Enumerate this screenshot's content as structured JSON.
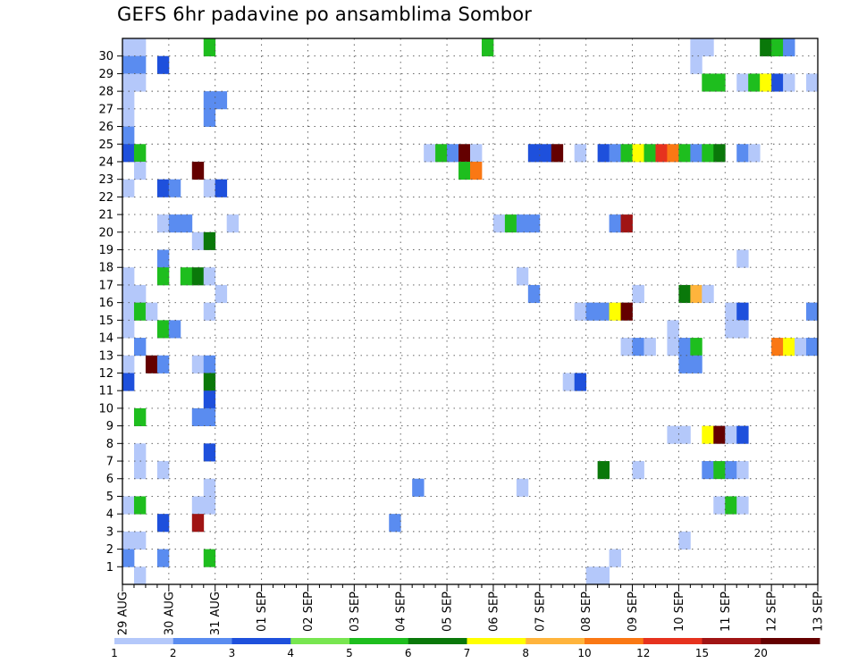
{
  "chart_data": {
    "type": "heatmap",
    "title": "GEFS 6hr padavine po ansamblima Sombor",
    "xlabel": "",
    "ylabel": "",
    "x_tick_labels": [
      "29 AUG",
      "30 AUG",
      "31 AUG",
      "01 SEP",
      "02 SEP",
      "03 SEP",
      "04 SEP",
      "05 SEP",
      "06 SEP",
      "07 SEP",
      "08 SEP",
      "09 SEP",
      "10 SEP",
      "11 SEP",
      "12 SEP",
      "13 SEP"
    ],
    "y_tick_labels": [
      "1",
      "2",
      "3",
      "4",
      "5",
      "6",
      "7",
      "8",
      "9",
      "10",
      "11",
      "12",
      "13",
      "14",
      "15",
      "16",
      "17",
      "18",
      "19",
      "20",
      "21",
      "22",
      "23",
      "24",
      "25",
      "26",
      "27",
      "28",
      "29",
      "30"
    ],
    "xlim_steps": [
      0,
      60
    ],
    "ylim_members": [
      0,
      30
    ],
    "grid": true,
    "legend_placement": "bottom",
    "colorbar": {
      "labels": [
        "1",
        "2",
        "3",
        "4",
        "5",
        "6",
        "7",
        "8",
        "10",
        "12",
        "15",
        "20"
      ],
      "colors": [
        "#b4c8fa",
        "#5a8cf0",
        "#1e50dc",
        "#78e650",
        "#1ebe1e",
        "#0a780a",
        "#ffff00",
        "#ffb43c",
        "#fa7814",
        "#e6321e",
        "#a01414",
        "#640000"
      ]
    },
    "cells": [
      [
        0,
        30,
        1
      ],
      [
        1,
        30,
        1
      ],
      [
        7,
        30,
        5
      ],
      [
        31,
        30,
        5
      ],
      [
        49,
        30,
        1
      ],
      [
        50,
        30,
        1
      ],
      [
        55,
        30,
        6
      ],
      [
        56,
        30,
        5
      ],
      [
        57,
        30,
        2
      ],
      [
        0,
        29,
        2
      ],
      [
        1,
        29,
        2
      ],
      [
        3,
        29,
        3
      ],
      [
        49,
        29,
        1
      ],
      [
        0,
        28,
        1
      ],
      [
        1,
        28,
        1
      ],
      [
        50,
        28,
        5
      ],
      [
        51,
        28,
        5
      ],
      [
        53,
        28,
        1
      ],
      [
        54,
        28,
        5
      ],
      [
        55,
        28,
        7
      ],
      [
        56,
        28,
        3
      ],
      [
        57,
        28,
        1
      ],
      [
        59,
        28,
        1
      ],
      [
        0,
        27,
        1
      ],
      [
        7,
        27,
        2
      ],
      [
        8,
        27,
        2
      ],
      [
        0,
        26,
        1
      ],
      [
        7,
        26,
        2
      ],
      [
        0,
        25,
        2
      ],
      [
        0,
        24,
        3
      ],
      [
        1,
        24,
        5
      ],
      [
        26,
        24,
        1
      ],
      [
        27,
        24,
        5
      ],
      [
        28,
        24,
        2
      ],
      [
        29,
        24,
        12
      ],
      [
        30,
        24,
        1
      ],
      [
        35,
        24,
        3
      ],
      [
        36,
        24,
        3
      ],
      [
        37,
        24,
        12
      ],
      [
        39,
        24,
        1
      ],
      [
        41,
        24,
        3
      ],
      [
        42,
        24,
        2
      ],
      [
        43,
        24,
        5
      ],
      [
        44,
        24,
        7
      ],
      [
        45,
        24,
        5
      ],
      [
        46,
        24,
        10
      ],
      [
        47,
        24,
        9
      ],
      [
        48,
        24,
        5
      ],
      [
        49,
        24,
        2
      ],
      [
        50,
        24,
        5
      ],
      [
        51,
        24,
        6
      ],
      [
        53,
        24,
        2
      ],
      [
        54,
        24,
        1
      ],
      [
        1,
        23,
        1
      ],
      [
        29,
        23,
        5
      ],
      [
        30,
        23,
        9
      ],
      [
        6,
        23,
        12
      ],
      [
        0,
        22,
        1
      ],
      [
        3,
        22,
        3
      ],
      [
        4,
        22,
        2
      ],
      [
        7,
        22,
        1
      ],
      [
        8,
        22,
        3
      ],
      [
        3,
        20,
        1
      ],
      [
        4,
        20,
        2
      ],
      [
        5,
        20,
        2
      ],
      [
        9,
        20,
        1
      ],
      [
        32,
        20,
        1
      ],
      [
        33,
        20,
        5
      ],
      [
        34,
        20,
        2
      ],
      [
        35,
        20,
        2
      ],
      [
        42,
        20,
        2
      ],
      [
        43,
        20,
        11
      ],
      [
        6,
        19,
        1
      ],
      [
        7,
        19,
        6
      ],
      [
        3,
        18,
        2
      ],
      [
        53,
        18,
        1
      ],
      [
        0,
        17,
        1
      ],
      [
        3,
        17,
        5
      ],
      [
        5,
        17,
        5
      ],
      [
        6,
        17,
        6
      ],
      [
        7,
        17,
        1
      ],
      [
        34,
        17,
        1
      ],
      [
        0,
        16,
        1
      ],
      [
        1,
        16,
        1
      ],
      [
        8,
        16,
        1
      ],
      [
        35,
        16,
        2
      ],
      [
        44,
        16,
        1
      ],
      [
        48,
        16,
        6
      ],
      [
        49,
        16,
        8
      ],
      [
        50,
        16,
        1
      ],
      [
        0,
        15,
        1
      ],
      [
        1,
        15,
        5
      ],
      [
        2,
        15,
        1
      ],
      [
        7,
        15,
        1
      ],
      [
        39,
        15,
        1
      ],
      [
        40,
        15,
        2
      ],
      [
        41,
        15,
        2
      ],
      [
        42,
        15,
        7
      ],
      [
        43,
        15,
        12
      ],
      [
        52,
        15,
        1
      ],
      [
        53,
        15,
        3
      ],
      [
        59,
        15,
        2
      ],
      [
        0,
        14,
        1
      ],
      [
        3,
        14,
        5
      ],
      [
        4,
        14,
        2
      ],
      [
        47,
        14,
        1
      ],
      [
        52,
        14,
        1
      ],
      [
        53,
        14,
        1
      ],
      [
        1,
        13,
        2
      ],
      [
        43,
        13,
        1
      ],
      [
        44,
        13,
        2
      ],
      [
        45,
        13,
        1
      ],
      [
        47,
        13,
        1
      ],
      [
        48,
        13,
        2
      ],
      [
        49,
        13,
        5
      ],
      [
        56,
        13,
        9
      ],
      [
        57,
        13,
        7
      ],
      [
        58,
        13,
        1
      ],
      [
        59,
        13,
        2
      ],
      [
        0,
        12,
        1
      ],
      [
        2,
        12,
        12
      ],
      [
        3,
        12,
        2
      ],
      [
        6,
        12,
        1
      ],
      [
        7,
        12,
        2
      ],
      [
        48,
        12,
        2
      ],
      [
        49,
        12,
        2
      ],
      [
        0,
        11,
        3
      ],
      [
        7,
        11,
        6
      ],
      [
        38,
        11,
        1
      ],
      [
        39,
        11,
        3
      ],
      [
        7,
        10,
        3
      ],
      [
        1,
        9,
        5
      ],
      [
        6,
        9,
        2
      ],
      [
        7,
        9,
        2
      ],
      [
        47,
        8,
        1
      ],
      [
        48,
        8,
        1
      ],
      [
        50,
        8,
        7
      ],
      [
        51,
        8,
        12
      ],
      [
        52,
        8,
        1
      ],
      [
        53,
        8,
        3
      ],
      [
        1,
        7,
        1
      ],
      [
        7,
        7,
        3
      ],
      [
        1,
        6,
        1
      ],
      [
        3,
        6,
        1
      ],
      [
        41,
        6,
        6
      ],
      [
        44,
        6,
        1
      ],
      [
        50,
        6,
        2
      ],
      [
        51,
        6,
        5
      ],
      [
        52,
        6,
        2
      ],
      [
        53,
        6,
        1
      ],
      [
        7,
        5,
        1
      ],
      [
        25,
        5,
        2
      ],
      [
        34,
        5,
        1
      ],
      [
        0,
        4,
        1
      ],
      [
        1,
        4,
        5
      ],
      [
        6,
        4,
        1
      ],
      [
        7,
        4,
        1
      ],
      [
        51,
        4,
        1
      ],
      [
        52,
        4,
        5
      ],
      [
        53,
        4,
        1
      ],
      [
        3,
        3,
        3
      ],
      [
        6,
        3,
        11
      ],
      [
        23,
        3,
        2
      ],
      [
        0,
        2,
        1
      ],
      [
        1,
        2,
        1
      ],
      [
        48,
        2,
        1
      ],
      [
        0,
        1,
        2
      ],
      [
        3,
        1,
        2
      ],
      [
        7,
        1,
        5
      ],
      [
        42,
        1,
        1
      ],
      [
        1,
        0,
        1
      ],
      [
        40,
        0,
        1
      ],
      [
        41,
        0,
        1
      ]
    ]
  }
}
